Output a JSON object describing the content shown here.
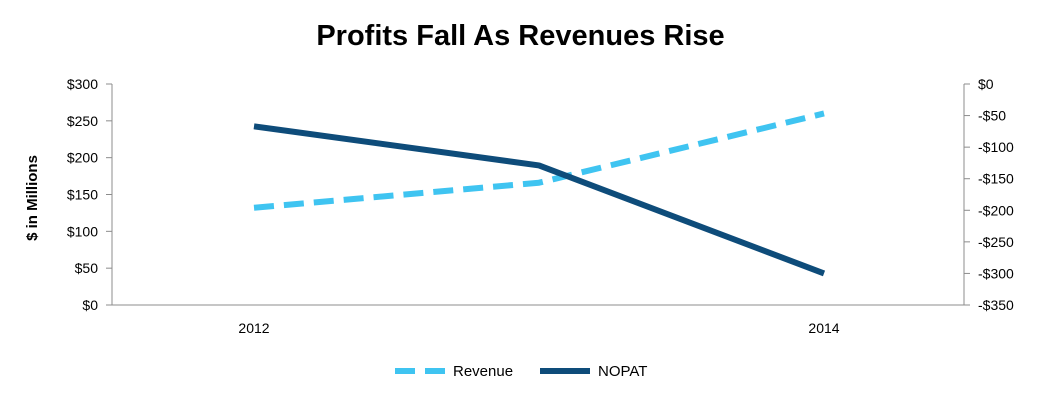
{
  "chart_data": {
    "type": "line",
    "title": "Profits Fall As Revenues Rise",
    "ylabel": "$ in Millions",
    "y2label": "",
    "x_ticks": [
      "2012",
      "2014"
    ],
    "y_ticks": [
      "$0",
      "$50",
      "$100",
      "$150",
      "$200",
      "$250",
      "$300"
    ],
    "y2_ticks": [
      "$0",
      "-$50",
      "-$100",
      "-$150",
      "-$200",
      "-$250",
      "-$300",
      "-$350"
    ],
    "ylim": [
      0,
      300
    ],
    "y2lim": [
      -350,
      0
    ],
    "x": [
      2012,
      2013,
      2014
    ],
    "grid": false,
    "legend_position": "bottom",
    "series": [
      {
        "name": "Revenue",
        "axis": "left",
        "style": "dashed",
        "color": "#3fc4f1",
        "values": [
          132,
          166,
          260
        ]
      },
      {
        "name": "NOPAT",
        "axis": "right",
        "style": "solid",
        "color": "#0e4c7a",
        "values": [
          -67,
          -129,
          -300
        ]
      }
    ]
  }
}
